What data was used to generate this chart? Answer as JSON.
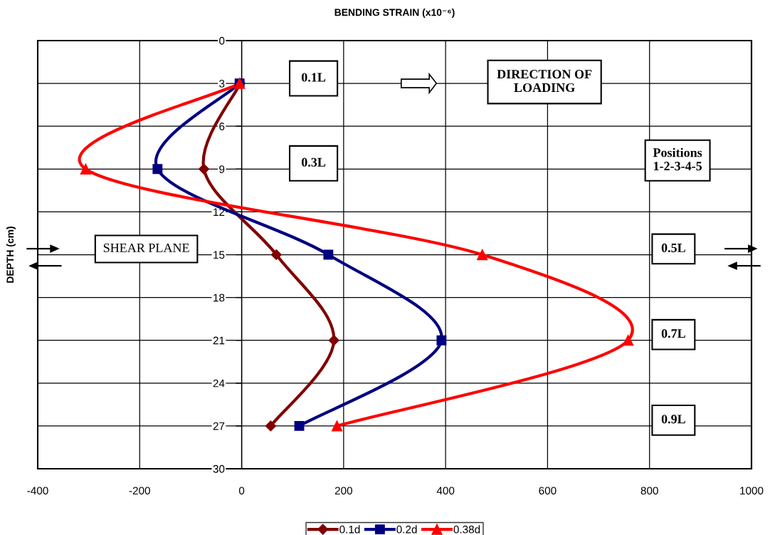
{
  "chart_data": {
    "type": "line",
    "xlabel": "BENDING STRAIN (x10⁻⁶)",
    "ylabel": "DEPTH (cm)",
    "annotations": [
      "0.1L",
      "DIRECTION OF\nLOADING",
      "0.3L",
      "Positions\n1-2-3-4-5",
      "SHEAR PLANE",
      "0.5L",
      "0.7L",
      "0.9L"
    ],
    "series": [
      {
        "name": "0.1d",
        "color": "#800000",
        "marker": "diamond",
        "x": [
          -3,
          -74,
          68,
          181,
          57
        ],
        "values": [
          3,
          9,
          15,
          21,
          27
        ]
      },
      {
        "name": "0.2d",
        "color": "#000080",
        "marker": "square",
        "x": [
          -4,
          -165,
          170,
          392,
          113
        ],
        "values": [
          3,
          9,
          15,
          21,
          27
        ]
      },
      {
        "name": "0.38d",
        "color": "#ff0000",
        "marker": "triangle",
        "x": [
          -4,
          -306,
          472,
          758,
          187
        ],
        "values": [
          3,
          9,
          15,
          21,
          27
        ]
      }
    ],
    "xlim": [
      -400,
      1000
    ],
    "xticks": [
      -400,
      -200,
      0,
      200,
      400,
      600,
      800,
      1000
    ],
    "ylim": [
      30,
      0
    ],
    "yticks": [
      0,
      3,
      6,
      9,
      12,
      15,
      18,
      21,
      24,
      27,
      30
    ],
    "grid": true,
    "legend": "bottom",
    "line_style": "solid"
  }
}
